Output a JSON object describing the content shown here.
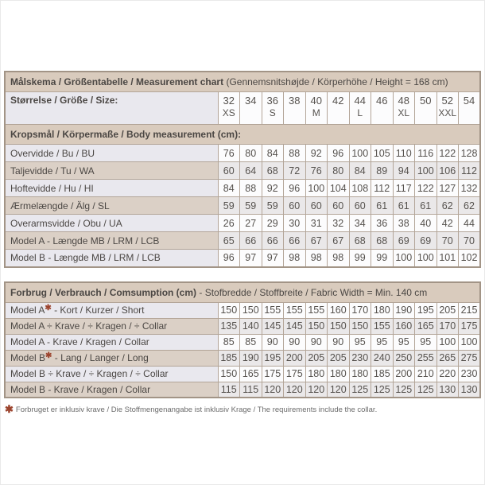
{
  "accent": {
    "star_color": "#9c442e",
    "band_color": "#d9cbbd"
  },
  "measurement_table": {
    "title_bold": "Målskema / Größentabelle / Measurement chart",
    "title_rest": " (Gennemsnitshøjde / Körperhöhe / Height = 168 cm)",
    "size_label": "Størrelse / Größe / Size:",
    "sizes": [
      {
        "number": "32",
        "letter": "XS"
      },
      {
        "number": "34",
        "letter": ""
      },
      {
        "number": "36",
        "letter": "S"
      },
      {
        "number": "38",
        "letter": ""
      },
      {
        "number": "40",
        "letter": "M"
      },
      {
        "number": "42",
        "letter": ""
      },
      {
        "number": "44",
        "letter": "L"
      },
      {
        "number": "46",
        "letter": ""
      },
      {
        "number": "48",
        "letter": "XL"
      },
      {
        "number": "50",
        "letter": ""
      },
      {
        "number": "52",
        "letter": "XXL"
      },
      {
        "number": "54",
        "letter": ""
      }
    ],
    "body_header": "Kropsmål / Körpermaße / Body measurement (cm):",
    "body_rows": [
      {
        "label": "Overvidde / Bu / BU",
        "values": [
          "76",
          "80",
          "84",
          "88",
          "92",
          "96",
          "100",
          "105",
          "110",
          "116",
          "122",
          "128"
        ]
      },
      {
        "label": "Taljevidde / Tu / WA",
        "values": [
          "60",
          "64",
          "68",
          "72",
          "76",
          "80",
          "84",
          "89",
          "94",
          "100",
          "106",
          "112"
        ]
      },
      {
        "label": "Hoftevidde / Hu / HI",
        "values": [
          "84",
          "88",
          "92",
          "96",
          "100",
          "104",
          "108",
          "112",
          "117",
          "122",
          "127",
          "132"
        ]
      },
      {
        "label": "Ærmelængde / Älg / SL",
        "values": [
          "59",
          "59",
          "59",
          "60",
          "60",
          "60",
          "60",
          "61",
          "61",
          "61",
          "62",
          "62"
        ]
      },
      {
        "label": "Overarmsvidde / Obu / UA",
        "values": [
          "26",
          "27",
          "29",
          "30",
          "31",
          "32",
          "34",
          "36",
          "38",
          "40",
          "42",
          "44"
        ]
      },
      {
        "label": "Model A - Længde MB / LRM / LCB",
        "values": [
          "65",
          "66",
          "66",
          "66",
          "67",
          "67",
          "68",
          "68",
          "69",
          "69",
          "70",
          "70"
        ]
      },
      {
        "label": "Model B - Længde MB / LRM / LCB",
        "values": [
          "96",
          "97",
          "97",
          "98",
          "98",
          "98",
          "99",
          "99",
          "100",
          "100",
          "101",
          "102"
        ]
      }
    ]
  },
  "consumption_table": {
    "header_bold": "Forbrug / Verbrauch / Comsumption (cm)",
    "header_rest": " - Stofbredde / Stoffbreite / Fabric Width = Min. 140 cm",
    "rows": [
      {
        "label_pre": "Model A",
        "star": true,
        "label_post": "- Kort / Kurzer / Short",
        "values": [
          "150",
          "150",
          "155",
          "155",
          "155",
          "160",
          "170",
          "180",
          "190",
          "195",
          "205",
          "215"
        ]
      },
      {
        "label": "Model A ÷ Krave / ÷ Kragen / ÷ Collar",
        "values": [
          "135",
          "140",
          "145",
          "145",
          "150",
          "150",
          "150",
          "155",
          "160",
          "165",
          "170",
          "175"
        ]
      },
      {
        "label": "Model A - Krave / Kragen / Collar",
        "values": [
          "85",
          "85",
          "90",
          "90",
          "90",
          "90",
          "95",
          "95",
          "95",
          "95",
          "100",
          "100"
        ]
      },
      {
        "label_pre": "Model B",
        "star": true,
        "label_post": "- Lang / Langer / Long",
        "values": [
          "185",
          "190",
          "195",
          "200",
          "205",
          "205",
          "230",
          "240",
          "250",
          "255",
          "265",
          "275"
        ]
      },
      {
        "label": "Model B ÷ Krave / ÷ Kragen / ÷ Collar",
        "values": [
          "150",
          "165",
          "175",
          "175",
          "180",
          "180",
          "180",
          "185",
          "200",
          "210",
          "220",
          "230"
        ]
      },
      {
        "label": "Model B - Krave / Kragen / Collar",
        "values": [
          "115",
          "115",
          "120",
          "120",
          "120",
          "120",
          "125",
          "125",
          "125",
          "125",
          "130",
          "130"
        ]
      }
    ]
  },
  "footnote": {
    "star": "✱",
    "text": "Forbruget er inklusiv krave / Die Stoffmengenangabe ist inklusiv Krage / The requirements include the collar."
  }
}
